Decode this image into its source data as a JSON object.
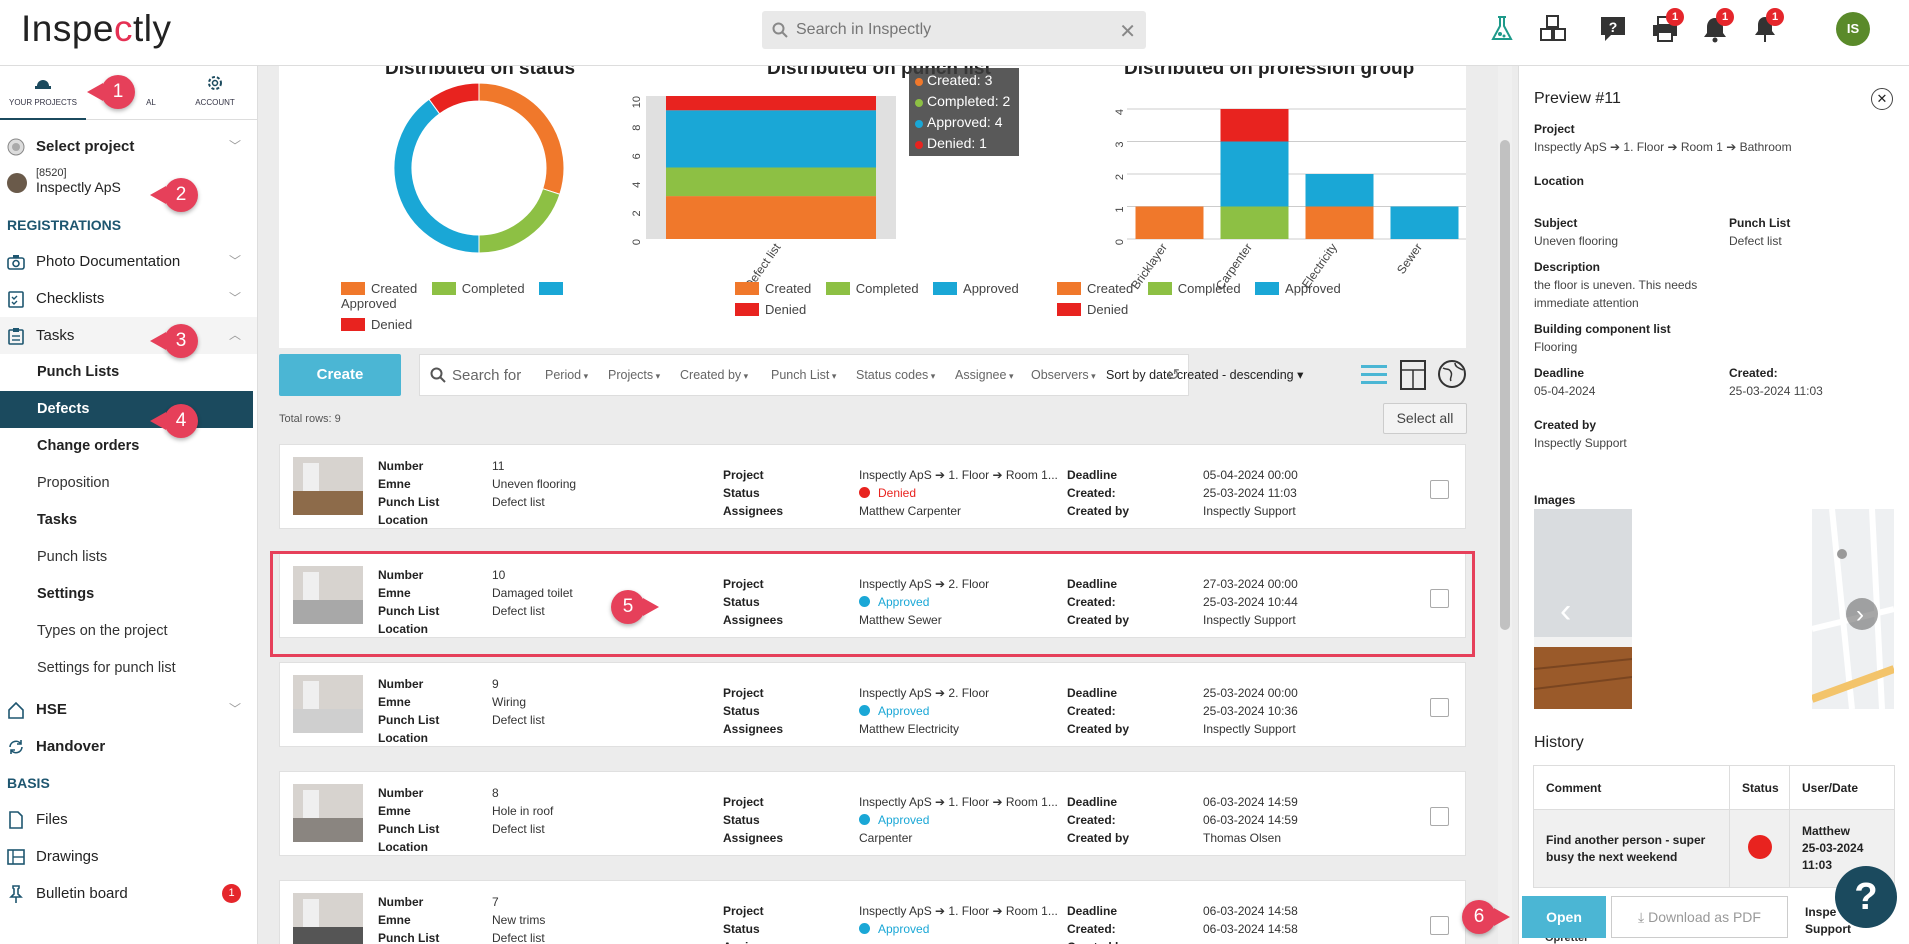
{
  "app": {
    "logo_text": "Inspectly",
    "search_placeholder": "Search in Inspectly",
    "avatar_initials": "IS"
  },
  "top_icons": [
    {
      "name": "flask-icon",
      "badge": ""
    },
    {
      "name": "cubes-icon",
      "badge": ""
    },
    {
      "name": "help-icon",
      "badge": ""
    },
    {
      "name": "printer-icon",
      "badge": "1"
    },
    {
      "name": "bell-icon",
      "badge": "1"
    },
    {
      "name": "pin-bell-icon",
      "badge": "1"
    }
  ],
  "sidebar": {
    "tabs": [
      "YOUR PROJECTS",
      "AL",
      "ACCOUNT"
    ],
    "select_project": "Select project",
    "project_code": "[8520]",
    "project_name": "Inspectly ApS",
    "registrations": "REGISTRATIONS",
    "items": {
      "photo": "Photo Documentation",
      "checklists": "Checklists",
      "tasks": "Tasks",
      "punch_lists": "Punch Lists",
      "defects": "Defects",
      "change_orders": "Change orders",
      "proposition": "Proposition",
      "tasks_sub": "Tasks",
      "punch_lists_sub": "Punch lists",
      "settings": "Settings",
      "types": "Types on the project",
      "settings_punch": "Settings for punch list",
      "hse": "HSE",
      "handover": "Handover"
    },
    "basis": "BASIS",
    "basis_items": {
      "files": "Files",
      "drawings": "Drawings",
      "bulletin": "Bulletin board",
      "bulletin_badge": "1"
    }
  },
  "callouts": [
    "1",
    "2",
    "3",
    "4",
    "5",
    "6"
  ],
  "colors": {
    "created": "#f0782b",
    "completed": "#8dc044",
    "approved": "#1aa7d6",
    "denied": "#e8231f",
    "accent": "#4bb6d4",
    "nav_active": "#1b4a5e",
    "highlight": "#e6405a"
  },
  "chart_data": [
    {
      "type": "pie",
      "title": "Distributed on status",
      "labels": [
        "Created",
        "Completed",
        "Approved",
        "Denied"
      ],
      "values": [
        3,
        2,
        4,
        1
      ]
    },
    {
      "type": "bar",
      "stacked": true,
      "title": "Distributed on punch list",
      "categories": [
        "Defect list"
      ],
      "ylim": [
        0,
        10
      ],
      "yticks": [
        0,
        2,
        4,
        6,
        8,
        10
      ],
      "series": [
        {
          "name": "Created",
          "values": [
            3
          ]
        },
        {
          "name": "Completed",
          "values": [
            2
          ]
        },
        {
          "name": "Approved",
          "values": [
            4
          ]
        },
        {
          "name": "Denied",
          "values": [
            1
          ]
        }
      ],
      "tooltip": [
        "Created: 3",
        "Completed: 2",
        "Approved: 4",
        "Denied: 1"
      ]
    },
    {
      "type": "bar",
      "stacked": true,
      "title": "Distributed on profession group",
      "categories": [
        "Bricklayer",
        "Carpenter",
        "Electricity",
        "Sewer"
      ],
      "ylim": [
        0,
        4
      ],
      "yticks": [
        0,
        1,
        2,
        3,
        4
      ],
      "series": [
        {
          "name": "Created",
          "values": [
            1,
            0,
            1,
            0
          ]
        },
        {
          "name": "Completed",
          "values": [
            0,
            1,
            0,
            0
          ]
        },
        {
          "name": "Approved",
          "values": [
            0,
            2,
            1,
            1
          ]
        },
        {
          "name": "Denied",
          "values": [
            0,
            1,
            0,
            0
          ]
        }
      ]
    }
  ],
  "legend_labels": [
    "Created",
    "Completed",
    "Approved",
    "Denied"
  ],
  "toolbar": {
    "create": "Create",
    "search_placeholder": "Search for",
    "filters": [
      "Period",
      "Projects",
      "Created by",
      "Punch List",
      "Status codes",
      "Assignee",
      "Observers"
    ],
    "sort": "Sort by date created - descending ▾",
    "total_rows": "Total rows: 9",
    "select_all": "Select all"
  },
  "labels": {
    "number": "Number",
    "emne": "Emne",
    "punch_list": "Punch List",
    "location": "Location",
    "project": "Project",
    "status": "Status",
    "assignees": "Assignees",
    "deadline": "Deadline",
    "created": "Created:",
    "created_by": "Created by"
  },
  "rows": [
    {
      "number": "11",
      "emne": "Uneven flooring",
      "punch_list": "Defect list",
      "project": "Inspectly ApS ➔ 1. Floor ➔ Room 1...",
      "status": "Denied",
      "status_color": "#e8231f",
      "assignee": "Matthew Carpenter",
      "deadline": "05-04-2024 00:00",
      "created": "25-03-2024 11:03",
      "created_by": "Inspectly Support"
    },
    {
      "number": "10",
      "emne": "Damaged toilet",
      "punch_list": "Defect list",
      "project": "Inspectly ApS ➔ 2. Floor",
      "status": "Approved",
      "status_color": "#1aa7d6",
      "assignee": "Matthew Sewer",
      "deadline": "27-03-2024 00:00",
      "created": "25-03-2024 10:44",
      "created_by": "Inspectly Support"
    },
    {
      "number": "9",
      "emne": "Wiring",
      "punch_list": "Defect list",
      "project": "Inspectly ApS ➔ 2. Floor",
      "status": "Approved",
      "status_color": "#1aa7d6",
      "assignee": "Matthew Electricity",
      "deadline": "25-03-2024 00:00",
      "created": "25-03-2024 10:36",
      "created_by": "Inspectly Support"
    },
    {
      "number": "8",
      "emne": "Hole in roof",
      "punch_list": "Defect list",
      "project": "Inspectly ApS ➔ 1. Floor ➔ Room 1...",
      "status": "Approved",
      "status_color": "#1aa7d6",
      "assignee": "Carpenter",
      "deadline": "06-03-2024 14:59",
      "created": "06-03-2024 14:59",
      "created_by": "Thomas Olsen"
    },
    {
      "number": "7",
      "emne": "New trims",
      "punch_list": "Defect list",
      "project": "Inspectly ApS ➔ 1. Floor ➔ Room 1...",
      "status": "Approved",
      "status_color": "#1aa7d6",
      "assignee": "",
      "deadline": "06-03-2024 14:58",
      "created": "06-03-2024 14:58",
      "created_by": ""
    }
  ],
  "preview": {
    "title": "Preview #11",
    "project_label": "Project",
    "project": "Inspectly ApS ➔ 1. Floor ➔ Room 1 ➔ Bathroom",
    "location_label": "Location",
    "subject_label": "Subject",
    "subject": "Uneven flooring",
    "punchlist_label": "Punch List",
    "punchlist": "Defect list",
    "description_label": "Description",
    "description": "the floor is uneven. This needs immediate attention",
    "bcl_label": "Building component list",
    "bcl": "Flooring",
    "deadline_label": "Deadline",
    "deadline": "05-04-2024",
    "created_label": "Created:",
    "created": "25-03-2024 11:03",
    "createdby_label": "Created by",
    "createdby": "Inspectly Support",
    "images_label": "Images",
    "history_label": "History",
    "history_headers": [
      "Comment",
      "Status",
      "User/Date"
    ],
    "history_row": {
      "comment": "Find another person - super busy the next weekend",
      "user": "Matthew",
      "date": "25-03-2024",
      "time": "11:03"
    },
    "open": "Open",
    "pdf": "Download as PDF",
    "partial_user": "Inspe",
    "partial_support": "Support",
    "partial_opretter": "Opretter"
  }
}
